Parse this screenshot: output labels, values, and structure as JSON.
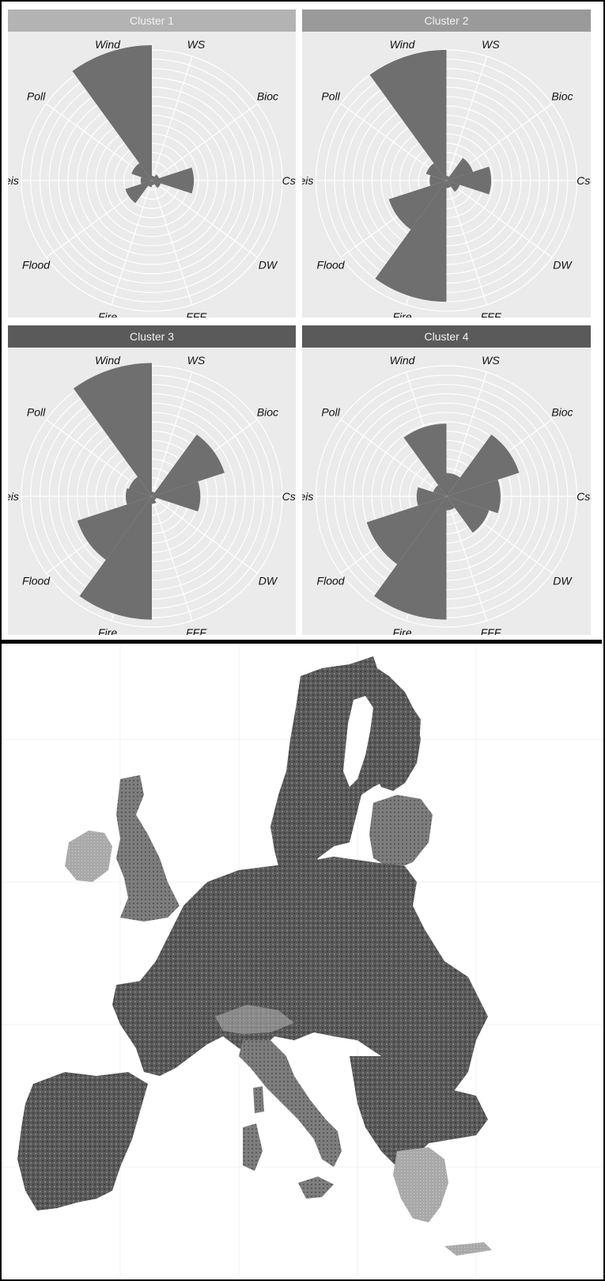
{
  "colors": {
    "panel_bg": "#ebebeb",
    "strip_light": "#b3b3b3",
    "strip_mid": "#9a9a9a",
    "strip_dark": "#5a5a5a",
    "wedge": "#6f6f6f",
    "grid": "#ffffff",
    "map_dark": "#4a4a4a",
    "map_mid": "#7d7d7d",
    "map_light": "#a9a9a9"
  },
  "chart_data": [
    {
      "type": "polar-bar",
      "title": "Cluster 1",
      "categories": [
        "WS",
        "Bioc",
        "Cseq",
        "DW",
        "FFF",
        "Fire",
        "Flood",
        "Leis",
        "Poll",
        "Wind"
      ],
      "values": [
        0.5,
        0.8,
        4.5,
        1.0,
        0.5,
        0.7,
        3.0,
        1.2,
        2.3,
        14.5
      ],
      "rlim": [
        0,
        14
      ]
    },
    {
      "type": "polar-bar",
      "title": "Cluster 2",
      "categories": [
        "WS",
        "Bioc",
        "Cseq",
        "DW",
        "FFF",
        "Fire",
        "Flood",
        "Leis",
        "Poll",
        "Wind"
      ],
      "values": [
        0.5,
        3.0,
        4.8,
        1.5,
        0.8,
        13.0,
        6.5,
        1.8,
        2.3,
        14.0
      ],
      "rlim": [
        0,
        14
      ]
    },
    {
      "type": "polar-bar",
      "title": "Cluster 3",
      "categories": [
        "WS",
        "Bioc",
        "Cseq",
        "DW",
        "FFF",
        "Fire",
        "Flood",
        "Leis",
        "Poll",
        "Wind"
      ],
      "values": [
        0.5,
        8.2,
        5.2,
        0.5,
        0.8,
        13.2,
        8.4,
        2.8,
        2.6,
        14.3
      ],
      "rlim": [
        0,
        14
      ]
    },
    {
      "type": "polar-bar",
      "title": "Cluster 4",
      "categories": [
        "WS",
        "Bioc",
        "Cseq",
        "DW",
        "FFF",
        "Fire",
        "Flood",
        "Leis",
        "Poll",
        "Wind"
      ],
      "values": [
        2.5,
        8.2,
        5.8,
        4.8,
        1.5,
        13.2,
        9.0,
        3.2,
        1.5,
        7.8
      ],
      "rlim": [
        0,
        14
      ]
    }
  ],
  "map": {
    "type": "map",
    "colors": [
      "#4a4a4a",
      "#7d7d7d",
      "#a9a9a9"
    ]
  }
}
